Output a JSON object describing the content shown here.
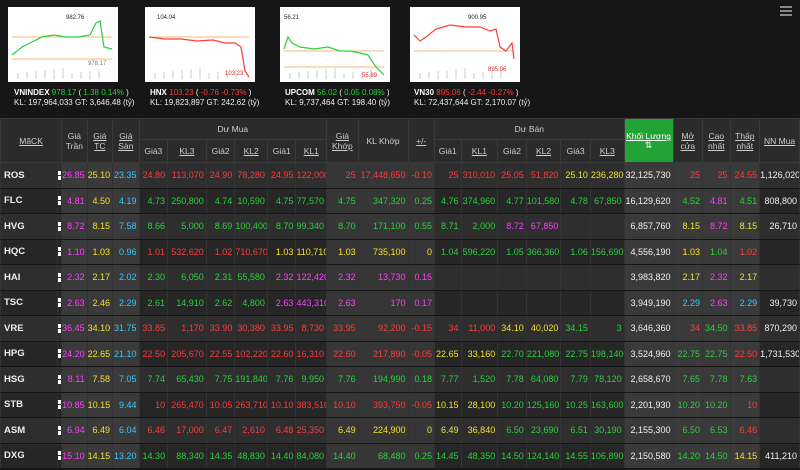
{
  "indices": [
    {
      "name": "VNINDEX",
      "value": "978.17",
      "change": "1.38",
      "pct": "0.14%",
      "kl": "197,964,033",
      "gt": "3,646.48",
      "unit": "(tỷ)",
      "dir": "up",
      "high_label": "982.76",
      "low_label": "978.17"
    },
    {
      "name": "HNX",
      "value": "103.23",
      "change": "-0.76",
      "pct": "-0.73%",
      "kl": "19,823,897",
      "gt": "242.62",
      "unit": "(tỷ)",
      "dir": "down",
      "high_label": "104.04",
      "low_label": "103.23"
    },
    {
      "name": "UPCOM",
      "value": "56.02",
      "change": "0.05",
      "pct": "0.08%",
      "kl": "9,737,464",
      "gt": "198.40",
      "unit": "(tỷ)",
      "dir": "up",
      "high_label": "56.21",
      "low_label": "55.89"
    },
    {
      "name": "VN30",
      "value": "895.06",
      "change": "-2.44",
      "pct": "-0.27%",
      "kl": "72,437,644",
      "gt": "2,170.07",
      "unit": "(tỷ)",
      "dir": "down",
      "high_label": "900.95",
      "low_label": "895.06"
    }
  ],
  "labels": {
    "kl": "KL:",
    "gt": "GT:"
  },
  "header": {
    "ma_ck": "MãCK",
    "gia_tran": "Giá Trần",
    "gia_tc": "Giá TC",
    "gia_san": "Giá Sàn",
    "du_mua": "Dư Mua",
    "du_ban": "Dư Bán",
    "gia3": "Giá3",
    "kl3": "KL3",
    "gia2": "Giá2",
    "kl2": "KL2",
    "gia1": "Giá1",
    "kl1": "KL1",
    "gia_khop": "Giá Khớp",
    "kl_khop": "KL Khớp",
    "pm": "+/-",
    "khoi_luong": "Khối Lượng",
    "mo_cua": "Mở cửa",
    "cao_nhat": "Cao nhất",
    "thap_nhat": "Thấp nhất",
    "nn_mua": "NN Mua"
  },
  "colors": {
    "up": "#29d03c",
    "down": "#ff3b3b",
    "ref": "#f2e02c",
    "ceil": "#ff3dff",
    "floor": "#36c8ff"
  },
  "rows": [
    {
      "sym": "ROS",
      "tran": "26.85",
      "tc": "25.10",
      "san": "23.35",
      "b3p": "24.80",
      "b3v": "113,070",
      "b2p": "24.90",
      "b2v": "78,280",
      "b1p": "24.95",
      "b1v": "122,000",
      "mp": "25",
      "mv": "17,448,650",
      "pm": "-0.10",
      "s1p": "25",
      "s1v": "310,010",
      "s2p": "25.05",
      "s2v": "51,820",
      "s3p": "25.10",
      "s3v": "236,280",
      "tot": "32,125,730",
      "open": "25",
      "hi": "25",
      "lo": "24.55",
      "nn": "1,126,020",
      "c": {
        "b3": "r",
        "b2": "r",
        "b1": "r",
        "m": "r",
        "s1": "r",
        "s2": "r",
        "s3": "y",
        "open": "r",
        "hi": "r",
        "lo": "r"
      }
    },
    {
      "sym": "FLC",
      "tran": "4.81",
      "tc": "4.50",
      "san": "4.19",
      "b3p": "4.73",
      "b3v": "250,800",
      "b2p": "4.74",
      "b2v": "10,590",
      "b1p": "4.75",
      "b1v": "77,570",
      "mp": "4.75",
      "mv": "347,320",
      "pm": "0.25",
      "s1p": "4.76",
      "s1v": "374,960",
      "s2p": "4.77",
      "s2v": "101,580",
      "s3p": "4.78",
      "s3v": "67,850",
      "tot": "16,129,620",
      "open": "4.52",
      "hi": "4.81",
      "lo": "4.51",
      "nn": "808,800",
      "c": {
        "b3": "g",
        "b2": "g",
        "b1": "g",
        "m": "g",
        "s1": "g",
        "s2": "g",
        "s3": "g",
        "open": "g",
        "hi": "m",
        "lo": "g"
      }
    },
    {
      "sym": "HVG",
      "tran": "8.72",
      "tc": "8.15",
      "san": "7.58",
      "b3p": "8.66",
      "b3v": "5,000",
      "b2p": "8.69",
      "b2v": "100,400",
      "b1p": "8.70",
      "b1v": "99,340",
      "mp": "8.70",
      "mv": "171,100",
      "pm": "0.55",
      "s1p": "8.71",
      "s1v": "2,000",
      "s2p": "8.72",
      "s2v": "67,850",
      "s3p": "",
      "s3v": "",
      "tot": "6,857,760",
      "open": "8.15",
      "hi": "8.72",
      "lo": "8.15",
      "nn": "26,710",
      "c": {
        "b3": "g",
        "b2": "g",
        "b1": "g",
        "m": "g",
        "s1": "g",
        "s2": "m",
        "s3": "g",
        "open": "y",
        "hi": "m",
        "lo": "y"
      }
    },
    {
      "sym": "HQC",
      "tran": "1.10",
      "tc": "1.03",
      "san": "0.96",
      "b3p": "1.01",
      "b3v": "532,620",
      "b2p": "1.02",
      "b2v": "710,670",
      "b1p": "1.03",
      "b1v": "110,710",
      "mp": "1.03",
      "mv": "735,100",
      "pm": "0",
      "s1p": "1.04",
      "s1v": "596,220",
      "s2p": "1.05",
      "s2v": "366,360",
      "s3p": "1.06",
      "s3v": "156,690",
      "tot": "4,556,190",
      "open": "1.03",
      "hi": "1.04",
      "lo": "1.02",
      "nn": "",
      "c": {
        "b3": "r",
        "b2": "r",
        "b1": "y",
        "m": "y",
        "s1": "g",
        "s2": "g",
        "s3": "g",
        "open": "y",
        "hi": "g",
        "lo": "r"
      }
    },
    {
      "sym": "HAI",
      "tran": "2.32",
      "tc": "2.17",
      "san": "2.02",
      "b3p": "2.30",
      "b3v": "6,050",
      "b2p": "2.31",
      "b2v": "55,580",
      "b1p": "2.32",
      "b1v": "122,420",
      "mp": "2.32",
      "mv": "13,730",
      "pm": "0.15",
      "s1p": "",
      "s1v": "",
      "s2p": "",
      "s2v": "",
      "s3p": "",
      "s3v": "",
      "tot": "3,983,820",
      "open": "2.17",
      "hi": "2.32",
      "lo": "2.17",
      "nn": "",
      "c": {
        "b3": "g",
        "b2": "g",
        "b1": "m",
        "m": "m",
        "s1": "g",
        "s2": "g",
        "s3": "g",
        "open": "y",
        "hi": "m",
        "lo": "y"
      }
    },
    {
      "sym": "TSC",
      "tran": "2.63",
      "tc": "2.46",
      "san": "2.29",
      "b3p": "2.61",
      "b3v": "14,910",
      "b2p": "2.62",
      "b2v": "4,800",
      "b1p": "2.63",
      "b1v": "443,310",
      "mp": "2.63",
      "mv": "170",
      "pm": "0.17",
      "s1p": "",
      "s1v": "",
      "s2p": "",
      "s2v": "",
      "s3p": "",
      "s3v": "",
      "tot": "3,949,190",
      "open": "2.29",
      "hi": "2.63",
      "lo": "2.29",
      "nn": "39,730",
      "c": {
        "b3": "g",
        "b2": "g",
        "b1": "m",
        "m": "m",
        "s1": "g",
        "s2": "g",
        "s3": "g",
        "open": "c",
        "hi": "m",
        "lo": "c"
      }
    },
    {
      "sym": "VRE",
      "tran": "36.45",
      "tc": "34.10",
      "san": "31.75",
      "b3p": "33.85",
      "b3v": "1,170",
      "b2p": "33.90",
      "b2v": "30,380",
      "b1p": "33.95",
      "b1v": "8,730",
      "mp": "33.95",
      "mv": "92,200",
      "pm": "-0.15",
      "s1p": "34",
      "s1v": "11,000",
      "s2p": "34.10",
      "s2v": "40,020",
      "s3p": "34.15",
      "s3v": "3",
      "tot": "3,646,360",
      "open": "34",
      "hi": "34.50",
      "lo": "33.85",
      "nn": "870,290",
      "c": {
        "b3": "r",
        "b2": "r",
        "b1": "r",
        "m": "r",
        "s1": "r",
        "s2": "y",
        "s3": "g",
        "open": "r",
        "hi": "g",
        "lo": "r"
      }
    },
    {
      "sym": "HPG",
      "tran": "24.20",
      "tc": "22.65",
      "san": "21.10",
      "b3p": "22.50",
      "b3v": "205,670",
      "b2p": "22.55",
      "b2v": "102,220",
      "b1p": "22.60",
      "b1v": "16,310",
      "mp": "22.60",
      "mv": "217,890",
      "pm": "-0.05",
      "s1p": "22.65",
      "s1v": "33,160",
      "s2p": "22.70",
      "s2v": "221,080",
      "s3p": "22.75",
      "s3v": "198,140",
      "tot": "3,524,960",
      "open": "22.75",
      "hi": "22.75",
      "lo": "22.50",
      "nn": "1,731,530",
      "c": {
        "b3": "r",
        "b2": "r",
        "b1": "r",
        "m": "r",
        "s1": "y",
        "s2": "g",
        "s3": "g",
        "open": "g",
        "hi": "g",
        "lo": "r"
      }
    },
    {
      "sym": "HSG",
      "tran": "8.11",
      "tc": "7.58",
      "san": "7.05",
      "b3p": "7.74",
      "b3v": "65,430",
      "b2p": "7.75",
      "b2v": "191,840",
      "b1p": "7.76",
      "b1v": "9,950",
      "mp": "7.76",
      "mv": "194,990",
      "pm": "0.18",
      "s1p": "7.77",
      "s1v": "1,520",
      "s2p": "7.78",
      "s2v": "64,080",
      "s3p": "7.79",
      "s3v": "78,120",
      "tot": "2,658,670",
      "open": "7.65",
      "hi": "7.78",
      "lo": "7.63",
      "nn": "",
      "c": {
        "b3": "g",
        "b2": "g",
        "b1": "g",
        "m": "g",
        "s1": "g",
        "s2": "g",
        "s3": "g",
        "open": "g",
        "hi": "g",
        "lo": "g"
      }
    },
    {
      "sym": "STB",
      "tran": "10.85",
      "tc": "10.15",
      "san": "9.44",
      "b3p": "10",
      "b3v": "265,470",
      "b2p": "10.05",
      "b2v": "263,710",
      "b1p": "10.10",
      "b1v": "383,510",
      "mp": "10.10",
      "mv": "393,750",
      "pm": "-0.05",
      "s1p": "10.15",
      "s1v": "28,100",
      "s2p": "10.20",
      "s2v": "125,160",
      "s3p": "10.25",
      "s3v": "163,600",
      "tot": "2,201,930",
      "open": "10.20",
      "hi": "10.20",
      "lo": "10",
      "nn": "",
      "c": {
        "b3": "r",
        "b2": "r",
        "b1": "r",
        "m": "r",
        "s1": "y",
        "s2": "g",
        "s3": "g",
        "open": "g",
        "hi": "g",
        "lo": "r"
      }
    },
    {
      "sym": "ASM",
      "tran": "6.94",
      "tc": "6.49",
      "san": "6.04",
      "b3p": "6.46",
      "b3v": "17,000",
      "b2p": "6.47",
      "b2v": "2,610",
      "b1p": "6.48",
      "b1v": "25,350",
      "mp": "6.49",
      "mv": "224,900",
      "pm": "0",
      "s1p": "6.49",
      "s1v": "36,840",
      "s2p": "6.50",
      "s2v": "23,690",
      "s3p": "6.51",
      "s3v": "30,190",
      "tot": "2,155,300",
      "open": "6.50",
      "hi": "6.53",
      "lo": "6.46",
      "nn": "",
      "c": {
        "b3": "r",
        "b2": "r",
        "b1": "r",
        "m": "y",
        "s1": "y",
        "s2": "g",
        "s3": "g",
        "open": "g",
        "hi": "g",
        "lo": "r"
      }
    },
    {
      "sym": "DXG",
      "tran": "15.10",
      "tc": "14.15",
      "san": "13.20",
      "b3p": "14.30",
      "b3v": "88,340",
      "b2p": "14.35",
      "b2v": "48,830",
      "b1p": "14.40",
      "b1v": "84,080",
      "mp": "14.40",
      "mv": "68,480",
      "pm": "0.25",
      "s1p": "14.45",
      "s1v": "48,350",
      "s2p": "14.50",
      "s2v": "124,140",
      "s3p": "14.55",
      "s3v": "106,890",
      "tot": "2,150,580",
      "open": "14.20",
      "hi": "14.50",
      "lo": "14.15",
      "nn": "411,210",
      "c": {
        "b3": "g",
        "b2": "g",
        "b1": "g",
        "m": "g",
        "s1": "g",
        "s2": "g",
        "s3": "g",
        "open": "g",
        "hi": "g",
        "lo": "y"
      }
    }
  ]
}
